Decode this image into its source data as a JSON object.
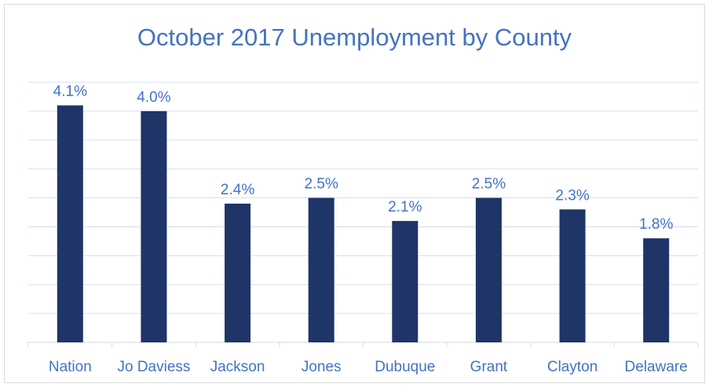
{
  "chart_data": {
    "type": "bar",
    "title": "October 2017 Unemployment by County",
    "categories": [
      "Nation",
      "Jo Daviess",
      "Jackson",
      "Jones",
      "Dubuque",
      "Grant",
      "Clayton",
      "Delaware"
    ],
    "values": [
      4.1,
      4.0,
      2.4,
      2.5,
      2.1,
      2.5,
      2.3,
      1.8
    ],
    "value_labels": [
      "4.1%",
      "4.0%",
      "2.4%",
      "2.5%",
      "2.1%",
      "2.5%",
      "2.3%",
      "1.8%"
    ],
    "ylim": [
      0,
      4.5
    ],
    "ystep": 0.5,
    "grid": true,
    "legend": "none",
    "xlabel": "",
    "ylabel": "",
    "colors": {
      "bar": "#1f3568",
      "text": "#4472c4",
      "grid": "#d6def0",
      "axis": "#d9d9d9"
    }
  }
}
